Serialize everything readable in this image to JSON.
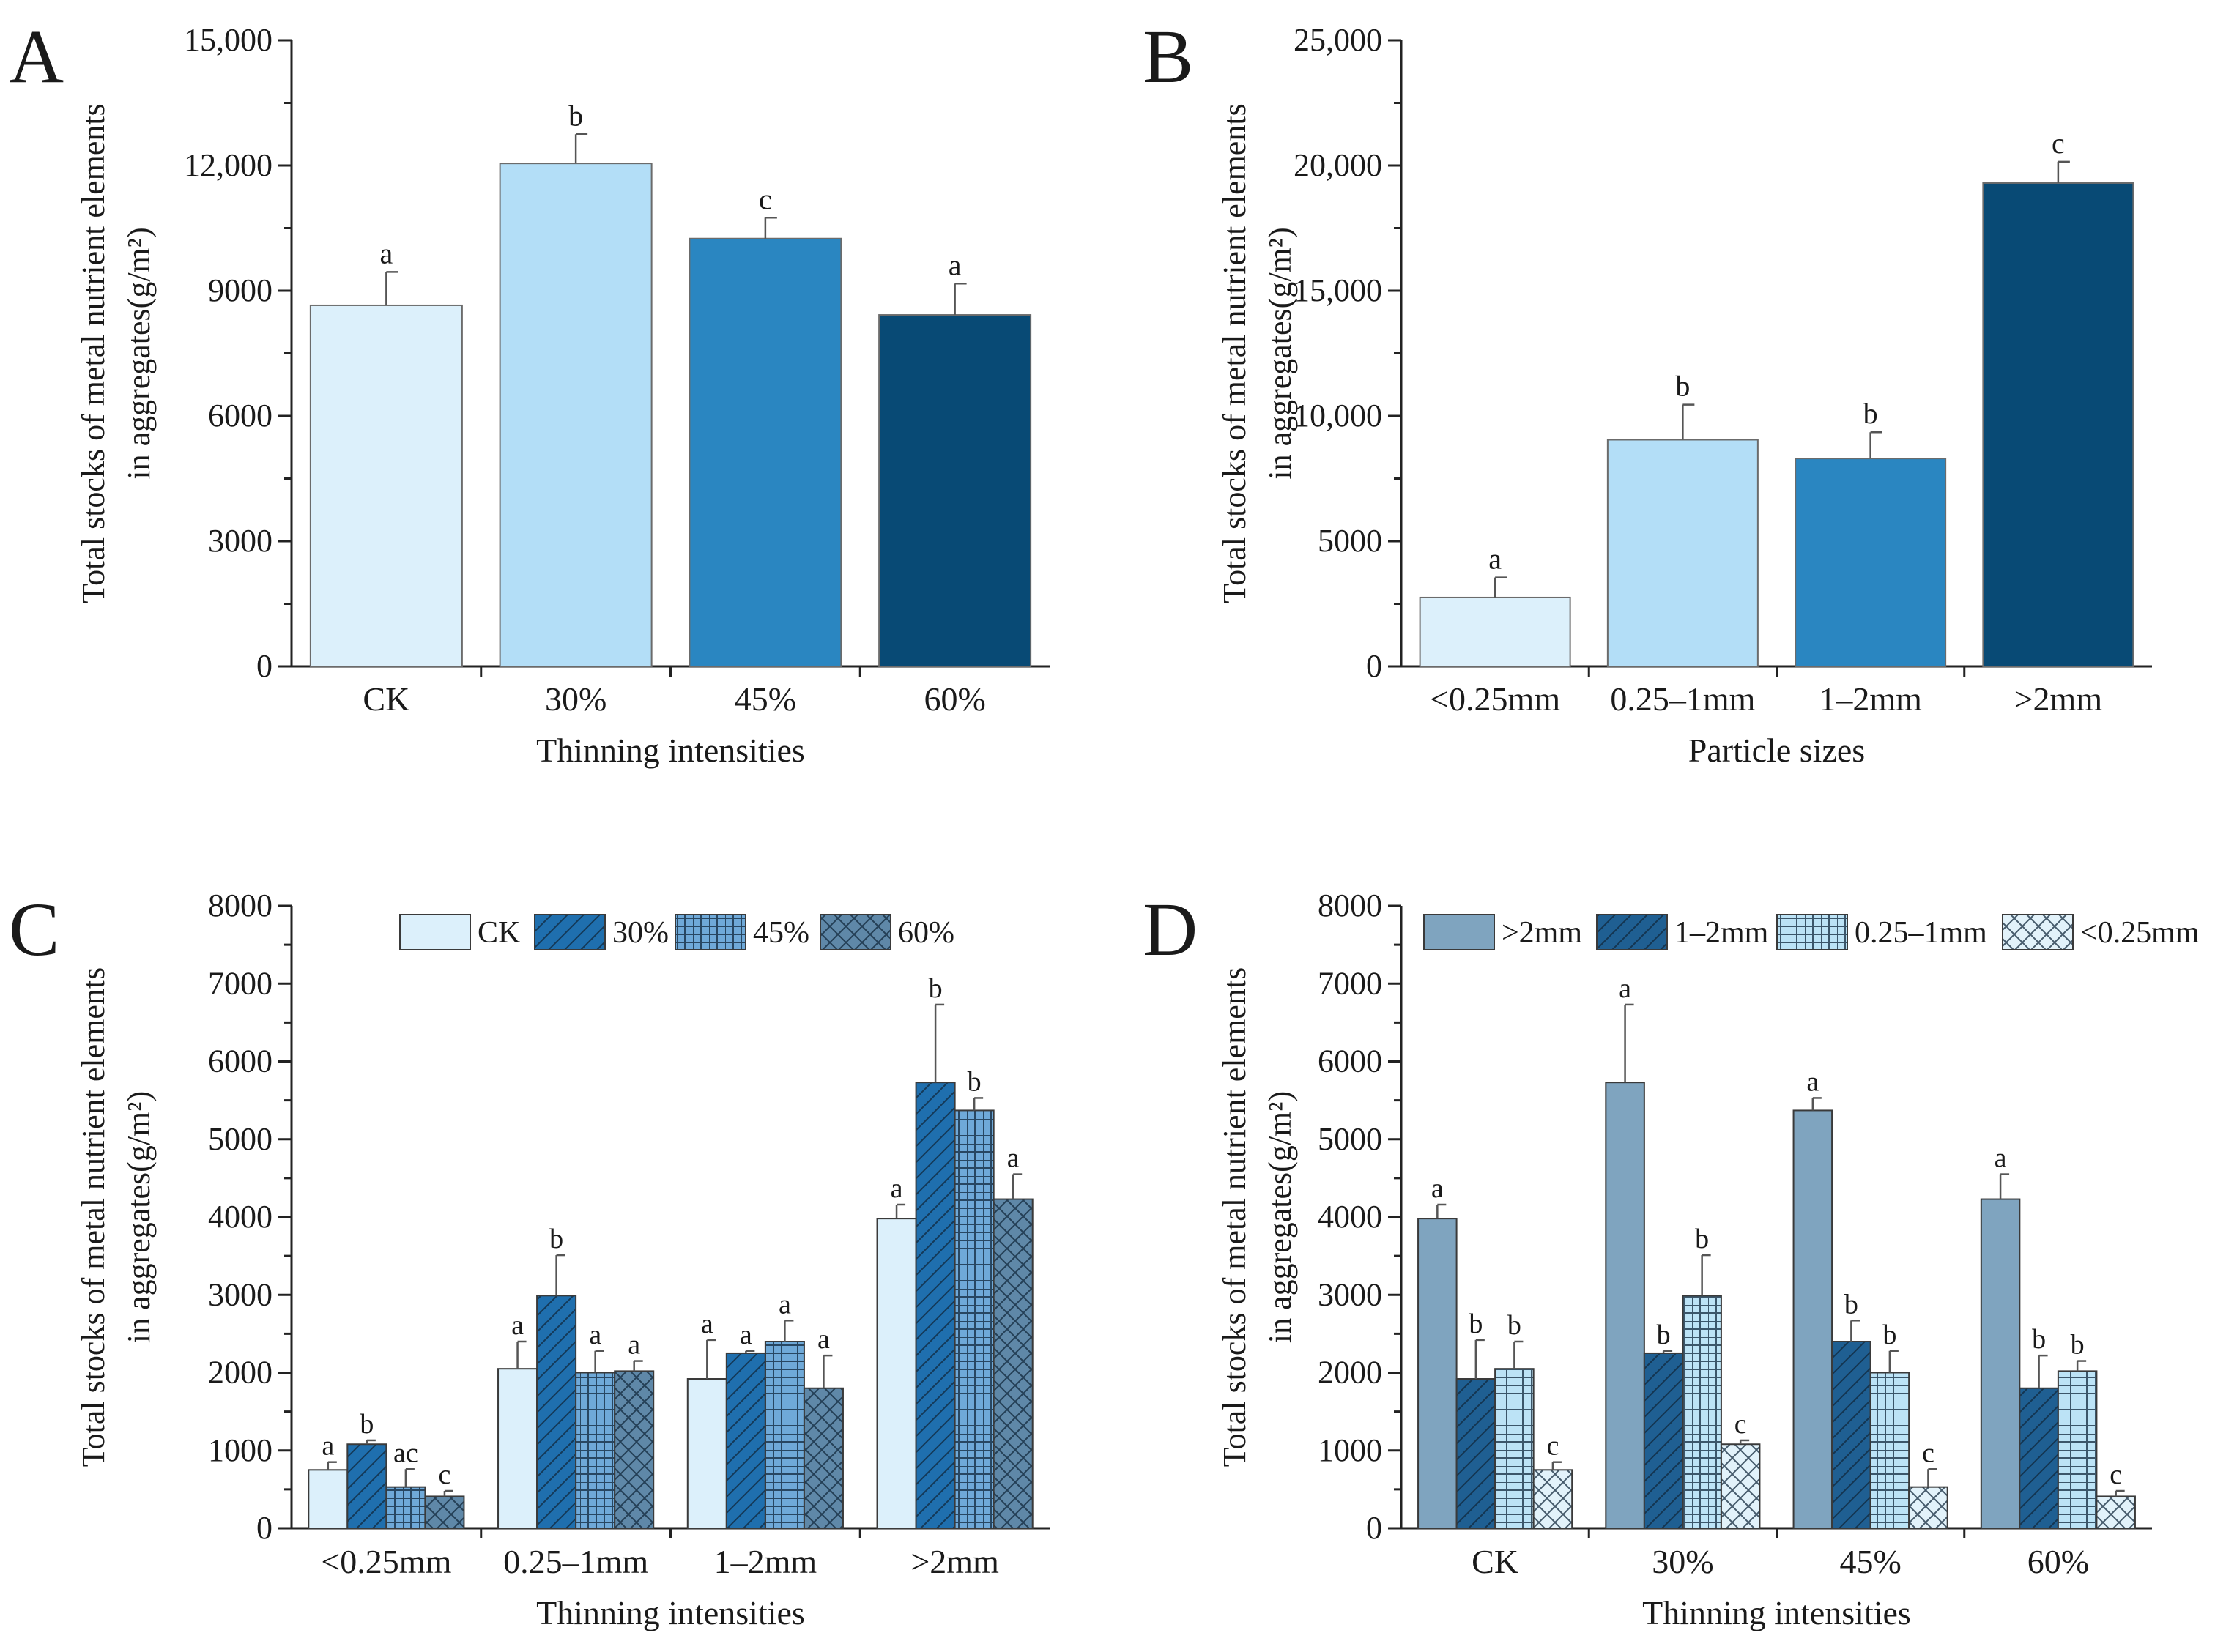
{
  "chart_data": [
    {
      "id": "A",
      "type": "bar",
      "panel_label": "A",
      "categories": [
        "CK",
        "30%",
        "45%",
        "60%"
      ],
      "values": [
        8650,
        12050,
        10250,
        8420
      ],
      "errors": [
        800,
        700,
        500,
        750
      ],
      "letters": [
        "a",
        "b",
        "c",
        "a"
      ],
      "colors": [
        "#DCF0FB",
        "#B3DEF7",
        "#2A86C1",
        "#084A75"
      ],
      "xlabel": "Thinning intensities",
      "ylabel_lines": [
        "Total stocks of metal nutrient elements",
        "in aggregates(g/m²)"
      ],
      "ylim": [
        0,
        15000
      ],
      "yticks": [
        0,
        3000,
        6000,
        9000,
        12000,
        15000
      ],
      "ytick_labels": [
        "0",
        "3000",
        "6000",
        "9000",
        "12,000",
        "15,000"
      ]
    },
    {
      "id": "B",
      "type": "bar",
      "panel_label": "B",
      "categories": [
        "<0.25mm",
        "0.25–1mm",
        "1–2mm",
        ">2mm"
      ],
      "values": [
        2750,
        9050,
        8300,
        19300
      ],
      "errors": [
        800,
        1400,
        1050,
        850
      ],
      "letters": [
        "a",
        "b",
        "b",
        "c"
      ],
      "colors": [
        "#DCF0FB",
        "#B3DEF7",
        "#2A86C1",
        "#084A75"
      ],
      "xlabel": "Particle sizes",
      "ylabel_lines": [
        "Total stocks of metal nutrient elements",
        "in aggregates(g/m²)"
      ],
      "ylim": [
        0,
        25000
      ],
      "yticks": [
        0,
        5000,
        10000,
        15000,
        20000,
        25000
      ],
      "ytick_labels": [
        "0",
        "5000",
        "10,000",
        "15,000",
        "20,000",
        "25,000"
      ]
    },
    {
      "id": "C",
      "type": "bar",
      "panel_label": "C",
      "categories": [
        "<0.25mm",
        "0.25–1mm",
        "1–2mm",
        ">2mm"
      ],
      "series": [
        {
          "name": "CK",
          "values": [
            750,
            2050,
            1920,
            3980
          ],
          "errors": [
            100,
            350,
            500,
            180
          ],
          "letters": [
            "a",
            "a",
            "a",
            "a"
          ]
        },
        {
          "name": "30%",
          "values": [
            1080,
            2990,
            2250,
            5730
          ],
          "errors": [
            50,
            520,
            30,
            1000
          ],
          "letters": [
            "b",
            "b",
            "a",
            "b"
          ]
        },
        {
          "name": "45%",
          "values": [
            530,
            2000,
            2400,
            5370
          ],
          "errors": [
            230,
            280,
            270,
            160
          ],
          "letters": [
            "ac",
            "a",
            "a",
            "b"
          ]
        },
        {
          "name": "60%",
          "values": [
            410,
            2020,
            1800,
            4230
          ],
          "errors": [
            70,
            130,
            420,
            320
          ],
          "letters": [
            "c",
            "a",
            "a",
            "a"
          ]
        }
      ],
      "legend": [
        {
          "label": "CK",
          "fill": "#DCF0FB",
          "pattern": "none"
        },
        {
          "label": "30%",
          "fill": "#1F6FAE",
          "pattern": "diag"
        },
        {
          "label": "45%",
          "fill": "#6FA9D8",
          "pattern": "grid"
        },
        {
          "label": "60%",
          "fill": "#5F88A8",
          "pattern": "cross"
        }
      ],
      "xlabel": "Thinning intensities",
      "ylabel_lines": [
        "Total stocks of metal nutrient elements",
        "in aggregates(g/m²)"
      ],
      "ylim": [
        0,
        8000
      ],
      "yticks": [
        0,
        1000,
        2000,
        3000,
        4000,
        5000,
        6000,
        7000,
        8000
      ],
      "ytick_labels": [
        "0",
        "1000",
        "2000",
        "3000",
        "4000",
        "5000",
        "6000",
        "7000",
        "8000"
      ]
    },
    {
      "id": "D",
      "type": "bar",
      "panel_label": "D",
      "categories": [
        "CK",
        "30%",
        "45%",
        "60%"
      ],
      "series": [
        {
          "name": ">2mm",
          "values": [
            3980,
            5730,
            5370,
            4230
          ],
          "errors": [
            180,
            1000,
            160,
            320
          ],
          "letters": [
            "a",
            "a",
            "a",
            "a"
          ]
        },
        {
          "name": "1–2mm",
          "values": [
            1920,
            2250,
            2400,
            1800
          ],
          "errors": [
            500,
            30,
            270,
            420
          ],
          "letters": [
            "b",
            "b",
            "b",
            "b"
          ]
        },
        {
          "name": "0.25–1mm",
          "values": [
            2050,
            2990,
            2000,
            2020
          ],
          "errors": [
            350,
            520,
            280,
            130
          ],
          "letters": [
            "b",
            "b",
            "b",
            "b"
          ]
        },
        {
          "name": "<0.25mm",
          "values": [
            750,
            1080,
            530,
            410
          ],
          "errors": [
            100,
            50,
            230,
            70
          ],
          "letters": [
            "c",
            "c",
            "c",
            "c"
          ]
        }
      ],
      "legend": [
        {
          "label": ">2mm",
          "fill": "#7FA4BF",
          "pattern": "none"
        },
        {
          "label": "1–2mm",
          "fill": "#1F5F92",
          "pattern": "diag"
        },
        {
          "label": "0.25–1mm",
          "fill": "#BCE3F6",
          "pattern": "grid"
        },
        {
          "label": "<0.25mm",
          "fill": "#E2F2FA",
          "pattern": "cross"
        }
      ],
      "xlabel": "Thinning intensities",
      "ylabel_lines": [
        "Total stocks of metal nutrient elements",
        "in aggregates(g/m²)"
      ],
      "ylim": [
        0,
        8000
      ],
      "yticks": [
        0,
        1000,
        2000,
        3000,
        4000,
        5000,
        6000,
        7000,
        8000
      ],
      "ytick_labels": [
        "0",
        "1000",
        "2000",
        "3000",
        "4000",
        "5000",
        "6000",
        "7000",
        "8000"
      ]
    }
  ]
}
